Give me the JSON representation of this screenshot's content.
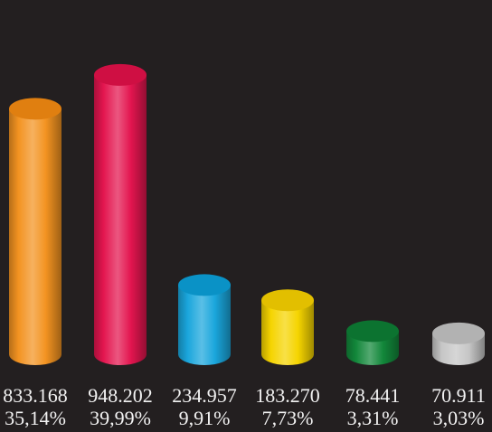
{
  "chart_data": {
    "type": "bar",
    "style": "3d-cylinder",
    "title": "",
    "xlabel": "",
    "ylabel": "",
    "grid": false,
    "legend": "none",
    "background": "#231f20",
    "label_color": "#f2f2f2",
    "ylim": [
      0,
      1000000
    ],
    "categories": [
      "833.168",
      "948.202",
      "234.957",
      "183.270",
      "78.441",
      "70.911"
    ],
    "values": [
      833168,
      948202,
      234957,
      183270,
      78441,
      70911
    ],
    "percent_labels": [
      "35,14%",
      "39,99%",
      "9,91%",
      "7,73%",
      "3,31%",
      "3,03%"
    ],
    "colors": [
      "#f39321",
      "#e3154f",
      "#1aa6dc",
      "#f5d400",
      "#12873a",
      "#c6c6c6"
    ],
    "top_colors": [
      "#e07f10",
      "#cf0f43",
      "#0a92c6",
      "#e2bf00",
      "#0c7330",
      "#b2b2b2"
    ]
  }
}
